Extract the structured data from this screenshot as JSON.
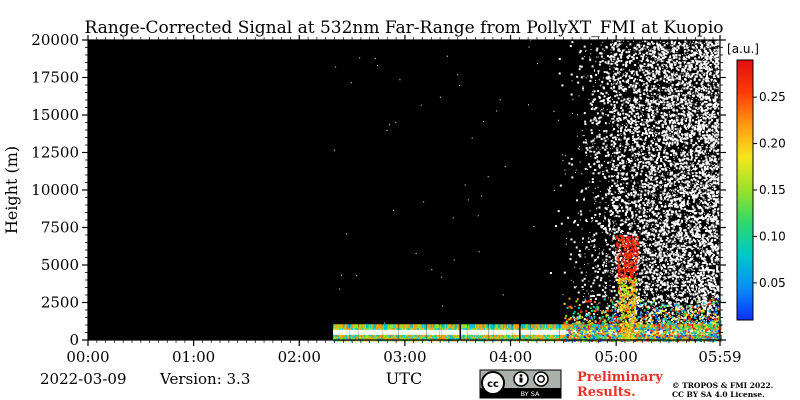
{
  "chart_data": {
    "type": "heatmap",
    "title": "Range-Corrected Signal at 532nm Far-Range from PollyXT_FMI at Kuopio",
    "ylabel": "Height (m)",
    "xlabel": "UTC",
    "x_ticks": [
      "00:00",
      "01:00",
      "02:00",
      "03:00",
      "04:00",
      "05:00",
      "05:59"
    ],
    "x_tick_hours": [
      0,
      1,
      2,
      3,
      4,
      5,
      5.983
    ],
    "xlim_hours": [
      0,
      5.983
    ],
    "y_ticks": [
      0,
      2500,
      5000,
      7500,
      10000,
      12500,
      15000,
      17500,
      20000
    ],
    "ylim": [
      0,
      20000
    ],
    "colorbar": {
      "unit": "[a.u.]",
      "ticks": [
        0.05,
        0.1,
        0.15,
        0.2,
        0.25
      ],
      "range": [
        0.01,
        0.29
      ],
      "colormap": [
        "#0b2fff",
        "#0a8ff5",
        "#00c8c8",
        "#2fd86a",
        "#9ae22a",
        "#f5e61e",
        "#ff9a10",
        "#ff3a08",
        "#e01010"
      ]
    },
    "background_color": "#000000",
    "observations": {
      "data_start_hour": 2.32,
      "noise_onset_hour": 4.3,
      "noise_saturation_hour": 5.0,
      "boundary_layer_top_m": 1000,
      "plume_peak_height_m": 7000,
      "plume_hour": 5.1
    }
  },
  "footer": {
    "date": "2022-03-09",
    "version": "Version: 3.3",
    "cc_text": "BY  SA",
    "preliminary_line1": "Preliminary",
    "preliminary_line2": "Results.",
    "copyright_line1": "© TROPOS & FMI 2022.",
    "copyright_line2": "CC BY SA 4.0 License."
  },
  "colors": {
    "preliminary": "#e8322a",
    "axis": "#000000"
  }
}
